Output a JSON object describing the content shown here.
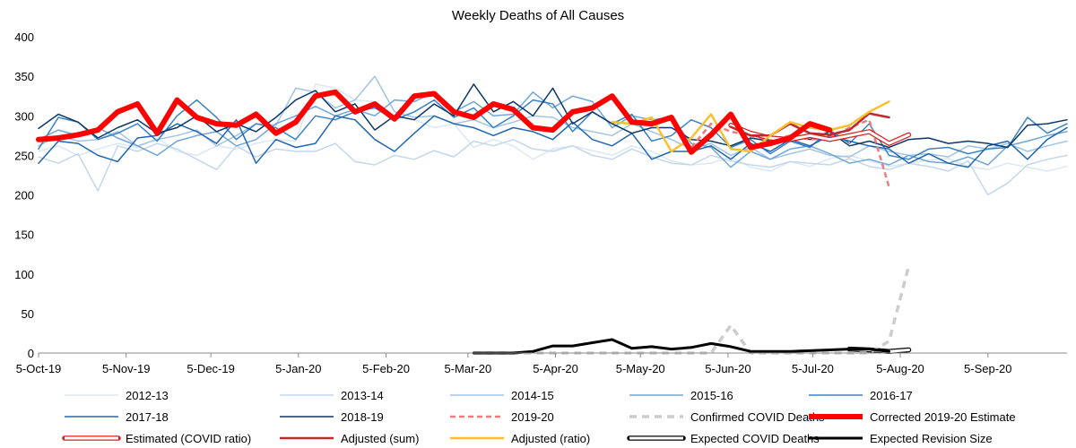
{
  "chart_data": {
    "type": "line",
    "title": "Weekly Deaths of All Causes",
    "xlabel": "",
    "ylabel": "",
    "ylim": [
      0,
      400
    ],
    "yticks": [
      0,
      50,
      100,
      150,
      200,
      250,
      300,
      350,
      400
    ],
    "xlim_weeks": [
      0,
      52
    ],
    "xticks": [
      {
        "label": "5-Oct-19",
        "week": 0
      },
      {
        "label": "5-Nov-19",
        "week": 4.43
      },
      {
        "label": "5-Dec-19",
        "week": 8.71
      },
      {
        "label": "5-Jan-20",
        "week": 13.14
      },
      {
        "label": "5-Feb-20",
        "week": 17.57
      },
      {
        "label": "5-Mar-20",
        "week": 21.71
      },
      {
        "label": "5-Apr-20",
        "week": 26.14
      },
      {
        "label": "5-May-20",
        "week": 30.43
      },
      {
        "label": "5-Jun-20",
        "week": 34.86
      },
      {
        "label": "5-Jul-20",
        "week": 39.14
      },
      {
        "label": "5-Aug-20",
        "week": 43.57
      },
      {
        "label": "5-Sep-20",
        "week": 48.0
      }
    ],
    "grid": false,
    "legend_position": "bottom",
    "series": [
      {
        "name": "2012-13",
        "color": "#dbe7f3",
        "width": 1.5,
        "dash": "",
        "x": [
          0,
          1,
          2,
          3,
          4,
          5,
          6,
          7,
          8,
          9,
          10,
          11,
          12,
          13,
          14,
          15,
          16,
          17,
          18,
          19,
          20,
          21,
          22,
          23,
          24,
          25,
          26,
          27,
          28,
          29,
          30,
          31,
          32,
          33,
          34,
          35,
          36,
          37,
          38,
          39,
          40,
          41,
          42,
          43,
          44,
          45,
          46,
          47,
          48,
          49,
          50,
          51,
          52
        ],
        "y": [
          255,
          262,
          250,
          258,
          265,
          260,
          272,
          255,
          250,
          262,
          258,
          265,
          270,
          268,
          340,
          335,
          320,
          318,
          300,
          295,
          285,
          290,
          260,
          270,
          262,
          245,
          258,
          262,
          256,
          250,
          262,
          255,
          243,
          238,
          240,
          248,
          235,
          230,
          242,
          236,
          246,
          250,
          243,
          236,
          240,
          244,
          246,
          236,
          232,
          240,
          235,
          230,
          236
        ]
      },
      {
        "name": "2013-14",
        "color": "#c3d7ec",
        "width": 1.5,
        "dash": "",
        "x": [
          0,
          1,
          2,
          3,
          4,
          5,
          6,
          7,
          8,
          9,
          10,
          11,
          12,
          13,
          14,
          15,
          16,
          17,
          18,
          19,
          20,
          21,
          22,
          23,
          24,
          25,
          26,
          27,
          28,
          29,
          30,
          31,
          32,
          33,
          34,
          35,
          36,
          37,
          38,
          39,
          40,
          41,
          42,
          43,
          44,
          45,
          46,
          47,
          48,
          49,
          50,
          51,
          52
        ],
        "y": [
          248,
          240,
          252,
          205,
          262,
          255,
          265,
          258,
          245,
          232,
          262,
          248,
          258,
          255,
          255,
          265,
          242,
          238,
          250,
          245,
          256,
          248,
          268,
          262,
          270,
          258,
          255,
          262,
          250,
          245,
          258,
          248,
          240,
          238,
          250,
          243,
          238,
          235,
          242,
          240,
          238,
          246,
          236,
          232,
          240,
          236,
          230,
          243,
          200,
          215,
          238,
          245,
          250
        ]
      },
      {
        "name": "2014-15",
        "color": "#a1c4e6",
        "width": 1.5,
        "dash": "",
        "x": [
          0,
          1,
          2,
          3,
          4,
          5,
          6,
          7,
          8,
          9,
          10,
          11,
          12,
          13,
          14,
          15,
          16,
          17,
          18,
          19,
          20,
          21,
          22,
          23,
          24,
          25,
          26,
          27,
          28,
          29,
          30,
          31,
          32,
          33,
          34,
          35,
          36,
          37,
          38,
          39,
          40,
          41,
          42,
          43,
          44,
          45,
          46,
          47,
          48,
          49,
          50,
          51,
          52
        ],
        "y": [
          262,
          275,
          268,
          270,
          280,
          262,
          270,
          275,
          282,
          262,
          275,
          290,
          288,
          335,
          330,
          310,
          320,
          350,
          305,
          298,
          300,
          290,
          295,
          285,
          292,
          300,
          298,
          285,
          280,
          275,
          290,
          280,
          270,
          258,
          265,
          250,
          260,
          245,
          252,
          258,
          250,
          248,
          262,
          255,
          250,
          252,
          248,
          262,
          258,
          265,
          255,
          262,
          268
        ]
      },
      {
        "name": "2015-16",
        "color": "#6fa6d8",
        "width": 1.5,
        "dash": "",
        "x": [
          0,
          1,
          2,
          3,
          4,
          5,
          6,
          7,
          8,
          9,
          10,
          11,
          12,
          13,
          14,
          15,
          16,
          17,
          18,
          19,
          20,
          21,
          22,
          23,
          24,
          25,
          26,
          27,
          28,
          29,
          30,
          31,
          32,
          33,
          34,
          35,
          36,
          37,
          38,
          39,
          40,
          41,
          42,
          43,
          44,
          45,
          46,
          47,
          48,
          49,
          50,
          51,
          52
        ],
        "y": [
          270,
          282,
          275,
          285,
          272,
          262,
          250,
          268,
          275,
          280,
          262,
          270,
          290,
          300,
          312,
          300,
          308,
          300,
          320,
          318,
          330,
          305,
          318,
          300,
          302,
          330,
          310,
          325,
          318,
          285,
          300,
          295,
          298,
          265,
          260,
          235,
          255,
          245,
          258,
          262,
          252,
          240,
          245,
          238,
          250,
          242,
          240,
          248,
          238,
          262,
          268,
          275,
          280
        ]
      },
      {
        "name": "2016-17",
        "color": "#3a83c5",
        "width": 1.5,
        "dash": "",
        "x": [
          0,
          1,
          2,
          3,
          4,
          5,
          6,
          7,
          8,
          9,
          10,
          11,
          12,
          13,
          14,
          15,
          16,
          17,
          18,
          19,
          20,
          21,
          22,
          23,
          24,
          25,
          26,
          27,
          28,
          29,
          30,
          31,
          32,
          33,
          34,
          35,
          36,
          37,
          38,
          39,
          40,
          41,
          42,
          43,
          44,
          45,
          46,
          47,
          48,
          49,
          50,
          51,
          52
        ],
        "y": [
          258,
          298,
          292,
          270,
          278,
          290,
          268,
          300,
          320,
          298,
          270,
          290,
          285,
          270,
          300,
          295,
          305,
          310,
          295,
          305,
          320,
          298,
          310,
          285,
          300,
          320,
          315,
          280,
          305,
          290,
          302,
          268,
          275,
          295,
          285,
          260,
          270,
          252,
          268,
          260,
          282,
          265,
          290,
          250,
          245,
          258,
          260,
          252,
          258,
          260,
          298,
          278,
          290
        ]
      },
      {
        "name": "2017-18",
        "color": "#2066b0",
        "width": 1.5,
        "dash": "",
        "x": [
          0,
          1,
          2,
          3,
          4,
          5,
          6,
          7,
          8,
          9,
          10,
          11,
          12,
          13,
          14,
          15,
          16,
          17,
          18,
          19,
          20,
          21,
          22,
          23,
          24,
          25,
          26,
          27,
          28,
          29,
          30,
          31,
          32,
          33,
          34,
          35,
          36,
          37,
          38,
          39,
          40,
          41,
          42,
          43,
          44,
          45,
          46,
          47,
          48,
          49,
          50,
          51,
          52
        ],
        "y": [
          240,
          268,
          265,
          250,
          242,
          272,
          275,
          290,
          280,
          265,
          295,
          240,
          270,
          260,
          265,
          300,
          295,
          270,
          255,
          278,
          300,
          290,
          285,
          275,
          285,
          280,
          270,
          292,
          270,
          262,
          278,
          245,
          255,
          255,
          262,
          245,
          265,
          255,
          270,
          262,
          275,
          268,
          262,
          258,
          240,
          252,
          240,
          235,
          262,
          268,
          245,
          270,
          285
        ]
      },
      {
        "name": "2018-19",
        "color": "#0d3768",
        "width": 1.5,
        "dash": "",
        "x": [
          0,
          1,
          2,
          3,
          4,
          5,
          6,
          7,
          8,
          9,
          10,
          11,
          12,
          13,
          14,
          15,
          16,
          17,
          18,
          19,
          20,
          21,
          22,
          23,
          24,
          25,
          26,
          27,
          28,
          29,
          30,
          31,
          32,
          33,
          34,
          35,
          36,
          37,
          38,
          39,
          40,
          41,
          42,
          43,
          44,
          45,
          46,
          47,
          48,
          49,
          50,
          51,
          52
        ],
        "y": [
          284,
          302,
          292,
          272,
          285,
          295,
          278,
          285,
          300,
          280,
          290,
          280,
          298,
          320,
          332,
          305,
          315,
          282,
          300,
          295,
          315,
          300,
          340,
          305,
          318,
          300,
          335,
          290,
          305,
          290,
          278,
          285,
          285,
          270,
          268,
          262,
          272,
          268,
          275,
          270,
          280,
          262,
          268,
          260,
          270,
          272,
          265,
          268,
          265,
          260,
          288,
          290,
          295
        ]
      },
      {
        "name": "2019-20",
        "color": "#ef7b7b",
        "width": 2.5,
        "dash": "6,4",
        "x": [
          33,
          34,
          35,
          36,
          37,
          38,
          39,
          40,
          41,
          42,
          43
        ],
        "y": [
          260,
          290,
          280,
          275,
          270,
          275,
          270,
          272,
          285,
          295,
          210
        ]
      },
      {
        "name": "Estimated (COVID ratio)",
        "color": "#ffffff",
        "outline": "#d81f1f",
        "width": 3,
        "dash": "",
        "x": [
          35,
          36,
          37,
          38,
          39,
          40,
          41,
          42,
          43,
          44
        ],
        "y": [
          288,
          278,
          272,
          270,
          275,
          270,
          275,
          280,
          265,
          276
        ]
      },
      {
        "name": "Adjusted (sum)",
        "color": "#c0282d",
        "width": 2.5,
        "dash": "",
        "x": [
          35,
          36,
          37,
          38,
          39,
          40,
          41,
          42,
          43
        ],
        "y": [
          286,
          275,
          275,
          290,
          278,
          276,
          282,
          303,
          298
        ]
      },
      {
        "name": "Adjusted (ratio)",
        "color": "#f8c02c",
        "width": 2.5,
        "dash": "",
        "x": [
          29,
          30,
          31,
          32,
          33,
          34,
          35,
          36,
          37,
          38,
          39,
          40,
          41,
          42,
          43
        ],
        "y": [
          292,
          290,
          298,
          255,
          272,
          302,
          258,
          255,
          275,
          292,
          285,
          282,
          288,
          305,
          318
        ]
      },
      {
        "name": "Corrected 2019-20 Estimate",
        "color": "#ff0000",
        "width": 6,
        "dash": "",
        "x": [
          0,
          1,
          2,
          3,
          4,
          5,
          6,
          7,
          8,
          9,
          10,
          11,
          12,
          13,
          14,
          15,
          16,
          17,
          18,
          19,
          20,
          21,
          22,
          23,
          24,
          25,
          26,
          27,
          28,
          29,
          30,
          31,
          32,
          33,
          34,
          35,
          36,
          37,
          38,
          39,
          40
        ],
        "y": [
          270,
          272,
          276,
          282,
          305,
          315,
          278,
          320,
          298,
          290,
          288,
          302,
          278,
          292,
          325,
          330,
          305,
          315,
          296,
          325,
          328,
          305,
          298,
          315,
          308,
          285,
          282,
          305,
          310,
          325,
          292,
          290,
          298,
          254,
          276,
          302,
          260,
          265,
          272,
          290,
          282
        ]
      },
      {
        "name": "Expected COVID Deaths",
        "color": "#ffffff",
        "outline": "#000000",
        "width": 3,
        "dash": "",
        "x": [
          41,
          42,
          43,
          44
        ],
        "y": [
          5,
          4,
          2,
          4
        ]
      },
      {
        "name": "Expected Revision Size",
        "color": "#cccccc",
        "width": 3.5,
        "dash": "8,6",
        "x": [
          22,
          23,
          24,
          25,
          26,
          27,
          28,
          29,
          30,
          31,
          32,
          33,
          34,
          35,
          36,
          37,
          38,
          39,
          40,
          41,
          42,
          43,
          44
        ],
        "y": [
          0,
          0,
          0,
          0,
          0,
          0,
          0,
          0,
          0,
          0,
          0,
          0,
          0,
          35,
          0,
          0,
          0,
          0,
          0,
          0,
          0,
          15,
          110
        ]
      },
      {
        "name": "Confirmed COVID Deaths",
        "color": "#000000",
        "width": 3,
        "dash": "",
        "x": [
          22,
          23,
          24,
          25,
          26,
          27,
          28,
          29,
          30,
          31,
          32,
          33,
          34,
          35,
          36,
          37,
          38,
          39,
          40,
          41,
          42,
          43
        ],
        "y": [
          0,
          0,
          0,
          2,
          9,
          9,
          13,
          17,
          6,
          8,
          5,
          7,
          12,
          8,
          2,
          2,
          2,
          3,
          4,
          5,
          5,
          2
        ]
      }
    ],
    "legend": [
      {
        "label": "2012-13",
        "ref": 0
      },
      {
        "label": "2013-14",
        "ref": 1
      },
      {
        "label": "2014-15",
        "ref": 2
      },
      {
        "label": "2015-16",
        "ref": 3
      },
      {
        "label": "2016-17",
        "ref": 4
      },
      {
        "label": "2017-18",
        "ref": 5
      },
      {
        "label": "2018-19",
        "ref": 6
      },
      {
        "label": "2019-20",
        "ref": 7
      },
      {
        "label": "Confirmed COVID Deaths",
        "ref": 13
      },
      {
        "label": "Corrected 2019-20 Estimate",
        "ref": 11
      },
      {
        "label": "Estimated (COVID ratio)",
        "ref": 8
      },
      {
        "label": "Adjusted (sum)",
        "ref": 9
      },
      {
        "label": "Adjusted (ratio)",
        "ref": 10
      },
      {
        "label": "Expected COVID Deaths",
        "ref": 12
      },
      {
        "label": "Expected Revision Size",
        "ref": 14
      }
    ]
  }
}
